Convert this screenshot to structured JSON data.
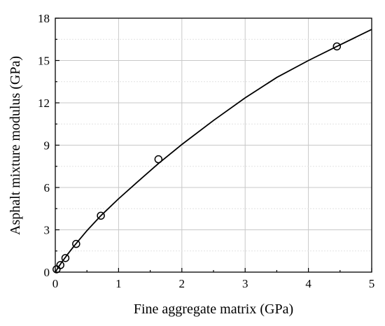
{
  "chart_data": {
    "type": "scatter",
    "xlabel": "Fine aggregate matrix (GPa)",
    "ylabel": "Asphalt mixture modulus (GPa)",
    "xlim": [
      0,
      5
    ],
    "ylim": [
      0,
      18
    ],
    "xticks": [
      0,
      1,
      2,
      3,
      4,
      5
    ],
    "yticks": [
      0,
      3,
      6,
      9,
      12,
      15,
      18
    ],
    "grid": true,
    "marker": "open-circle",
    "points": [
      {
        "x": 0.02,
        "y": 0.2
      },
      {
        "x": 0.08,
        "y": 0.5
      },
      {
        "x": 0.16,
        "y": 1.0
      },
      {
        "x": 0.33,
        "y": 2.0
      },
      {
        "x": 0.72,
        "y": 4.0
      },
      {
        "x": 1.63,
        "y": 8.0
      },
      {
        "x": 4.45,
        "y": 16.0
      }
    ],
    "fit_curve": {
      "style": "solid",
      "x": [
        0,
        0.05,
        0.1,
        0.2,
        0.3,
        0.5,
        0.72,
        1.0,
        1.3,
        1.63,
        2.0,
        2.5,
        3.0,
        3.5,
        4.0,
        4.45,
        5.0
      ],
      "y": [
        0,
        0.35,
        0.69,
        1.3,
        1.87,
        2.94,
        4.0,
        5.2,
        6.4,
        7.7,
        9.05,
        10.75,
        12.35,
        13.8,
        15.0,
        16.0,
        17.2
      ]
    }
  }
}
